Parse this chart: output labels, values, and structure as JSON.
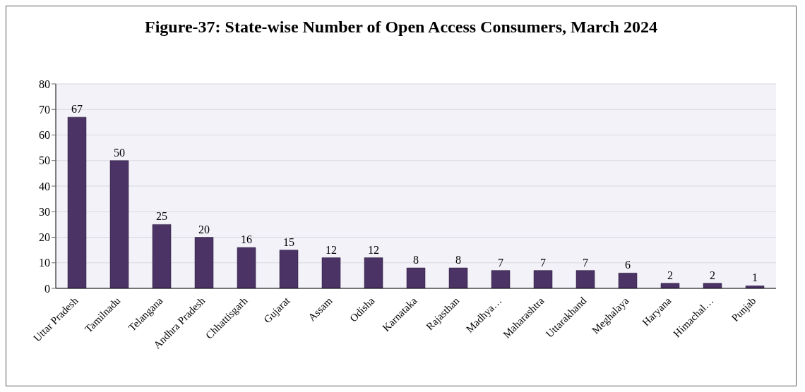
{
  "chart_data": {
    "type": "bar",
    "title": "Figure-37: State-wise Number of Open Access Consumers, March 2024",
    "categories": [
      "Uttar Pradesh",
      "Tamilnadu",
      "Telangana",
      "Andhra Pradesh",
      "Chhattisgarh",
      "Gujarat",
      "Assam",
      "Odisha",
      "Karnataka",
      "Rajasthan",
      "Madhya…",
      "Maharashtra",
      "Uttarakhand",
      "Meghalaya",
      "Haryana",
      "Himachal…",
      "Punjab"
    ],
    "values": [
      67,
      50,
      25,
      20,
      16,
      15,
      12,
      12,
      8,
      8,
      7,
      7,
      7,
      6,
      2,
      2,
      1
    ],
    "color": "#4b3366",
    "ylim": [
      0,
      80
    ],
    "yticks": [
      0,
      10,
      20,
      30,
      40,
      50,
      60,
      70,
      80
    ],
    "grid": "y",
    "data_labels": true
  }
}
